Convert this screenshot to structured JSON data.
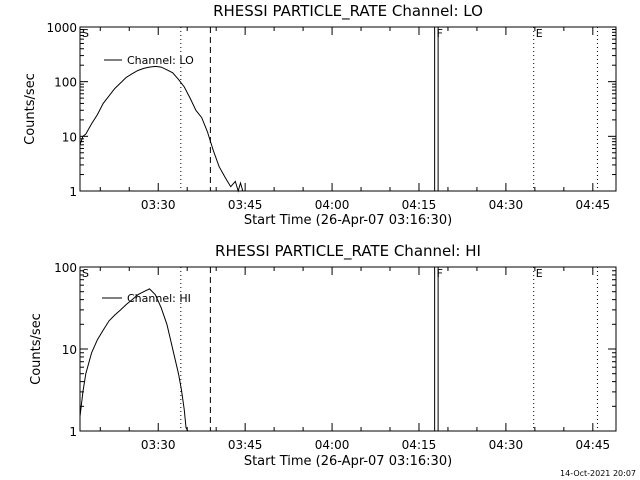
{
  "footer": {
    "timestamp": "14-Oct-2021 20:07"
  },
  "chart_data": [
    {
      "type": "line",
      "title": "RHESSI PARTICLE_RATE Channel: LO",
      "xlabel": "Start Time (26-Apr-07 03:16:30)",
      "ylabel": "Counts/sec",
      "yscale": "log",
      "xlim_min": [
        0,
        92.5
      ],
      "ylim": [
        1,
        1000
      ],
      "yticks": [
        1,
        10,
        100,
        1000
      ],
      "ytick_labels": [
        "1",
        "10",
        "100",
        "1000"
      ],
      "xticks_min": [
        13.5,
        28.5,
        43.5,
        58.5,
        73.5,
        88.5
      ],
      "xtick_labels": [
        "03:30",
        "03:45",
        "04:00",
        "04:15",
        "04:30",
        "04:45"
      ],
      "legend": "Channel: LO",
      "markers": [
        {
          "label": "S",
          "t_min": 0,
          "style": "dotted"
        },
        {
          "label": "",
          "t_min": 17.4,
          "style": "dotted"
        },
        {
          "label": "",
          "t_min": 22.5,
          "style": "dashed"
        },
        {
          "label": "F",
          "t_min": 61.2,
          "style": "solid"
        },
        {
          "label": "",
          "t_min": 61.8,
          "style": "solid"
        },
        {
          "label": "E",
          "t_min": 78.3,
          "style": "dotted"
        },
        {
          "label": "",
          "t_min": 89.3,
          "style": "dotted"
        }
      ],
      "series": [
        {
          "name": "Channel: LO",
          "t_min": [
            0.0,
            0.5,
            1.0,
            2.0,
            3.0,
            4.0,
            5.0,
            6.0,
            7.0,
            8.0,
            9.0,
            10.0,
            11.0,
            12.0,
            13.0,
            14.0,
            15.0,
            16.0,
            17.0,
            18.0,
            19.0,
            20.0,
            21.0,
            22.0,
            23.0,
            24.0,
            25.0,
            26.0,
            26.8,
            27.3,
            27.7,
            28.1,
            28.5
          ],
          "counts": [
            7,
            10,
            11,
            17,
            25,
            40,
            55,
            75,
            95,
            120,
            140,
            160,
            175,
            185,
            190,
            185,
            165,
            145,
            110,
            80,
            50,
            30,
            22,
            12,
            5.5,
            2.8,
            1.8,
            1.2,
            1.5,
            1.0,
            1.4,
            1.0,
            1.0
          ]
        }
      ]
    },
    {
      "type": "line",
      "title": "RHESSI PARTICLE_RATE Channel: HI",
      "xlabel": "Start Time (26-Apr-07 03:16:30)",
      "ylabel": "Counts/sec",
      "yscale": "log",
      "xlim_min": [
        0,
        92.5
      ],
      "ylim": [
        1,
        100
      ],
      "yticks": [
        1,
        10,
        100
      ],
      "ytick_labels": [
        "1",
        "10",
        "100"
      ],
      "xticks_min": [
        13.5,
        28.5,
        43.5,
        58.5,
        73.5,
        88.5
      ],
      "xtick_labels": [
        "03:30",
        "03:45",
        "04:00",
        "04:15",
        "04:30",
        "04:45"
      ],
      "legend": "Channel: HI",
      "markers": [
        {
          "label": "S",
          "t_min": 0,
          "style": "dotted"
        },
        {
          "label": "",
          "t_min": 17.4,
          "style": "dotted"
        },
        {
          "label": "",
          "t_min": 22.5,
          "style": "dashed"
        },
        {
          "label": "F",
          "t_min": 61.2,
          "style": "solid"
        },
        {
          "label": "",
          "t_min": 61.8,
          "style": "solid"
        },
        {
          "label": "E",
          "t_min": 78.3,
          "style": "dotted"
        },
        {
          "label": "",
          "t_min": 89.3,
          "style": "dotted"
        }
      ],
      "series": [
        {
          "name": "Channel: HI",
          "t_min": [
            0.0,
            0.5,
            1.0,
            2.0,
            3.0,
            4.0,
            5.0,
            6.0,
            7.0,
            8.0,
            9.0,
            10.0,
            11.0,
            12.0,
            13.0,
            14.0,
            15.0,
            16.0,
            17.0,
            17.5,
            18.0,
            18.3,
            18.6,
            19.0,
            19.3
          ],
          "counts": [
            1.5,
            3,
            5,
            9,
            13,
            17,
            22,
            26,
            30,
            35,
            40,
            46,
            50,
            54,
            46,
            32,
            20,
            10,
            5,
            3.2,
            1.8,
            1.1,
            1.0,
            1.0,
            1.0
          ]
        }
      ]
    }
  ]
}
